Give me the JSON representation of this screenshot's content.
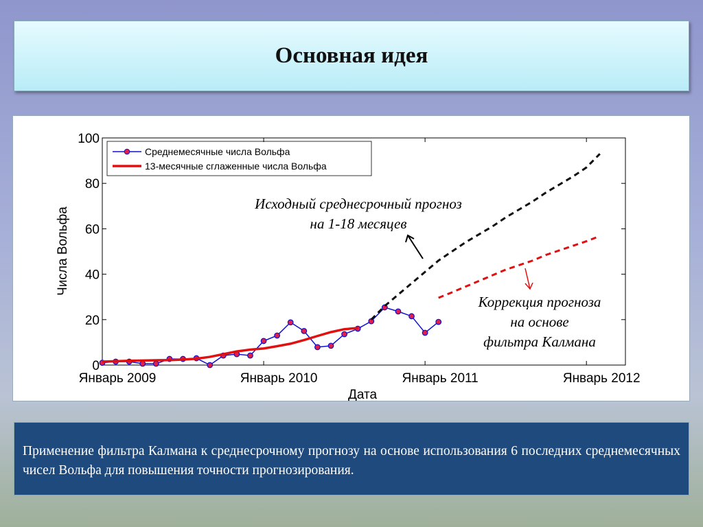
{
  "header": {
    "title": "Основная идея"
  },
  "chart_data": {
    "type": "line",
    "xlabel": "Дата",
    "ylabel": "Числа Вольфа",
    "xlim": [
      0,
      38.9
    ],
    "ylim": [
      0,
      100
    ],
    "xticks": [
      {
        "value": 0,
        "label": "Январь 2009"
      },
      {
        "value": 12,
        "label": "Январь 2010"
      },
      {
        "value": 24,
        "label": "Январь 2011"
      },
      {
        "value": 36,
        "label": "Январь 2012"
      }
    ],
    "yticks": [
      0,
      20,
      40,
      60,
      80,
      100
    ],
    "legend": "upper left",
    "series": [
      {
        "name": "Среднемесячные числа Вольфа",
        "color": "#1010d0",
        "marker": "circle",
        "marker_fill": "#e0204a",
        "x": [
          0,
          1,
          2,
          3,
          4,
          5,
          6,
          7,
          8,
          9,
          10,
          11,
          12,
          13,
          14,
          15,
          16,
          17,
          18,
          19,
          20,
          21,
          22,
          23,
          24,
          25
        ],
        "values": [
          1,
          1.5,
          1.5,
          0.6,
          0.6,
          2.7,
          2.7,
          3,
          0,
          4.2,
          4.8,
          4.2,
          10.6,
          13,
          18.8,
          15,
          7.9,
          8.5,
          13.6,
          16,
          19.3,
          25.4,
          23.6,
          21.5,
          14.2,
          19
        ]
      },
      {
        "name": "13-месячные сглаженные числа Вольфа",
        "color": "#e01010",
        "x": [
          0,
          1,
          2,
          3,
          4,
          5,
          6,
          7,
          8,
          9,
          10,
          11,
          12,
          13,
          14,
          15,
          16,
          17,
          18,
          19
        ],
        "values": [
          1.5,
          1.7,
          1.9,
          2,
          2.1,
          2.2,
          2.4,
          2.8,
          3.6,
          4.8,
          6,
          6.8,
          7.3,
          8.3,
          9.4,
          11,
          12.8,
          14.5,
          15.8,
          16.3
        ]
      },
      {
        "color": "#111111",
        "dash": true,
        "x": [
          20,
          21,
          22,
          23,
          24,
          25,
          26,
          27,
          28,
          29,
          30,
          31,
          32,
          33,
          34,
          35,
          36,
          37
        ],
        "values": [
          20,
          26,
          31,
          36,
          41,
          46,
          50,
          54,
          57.5,
          61,
          65,
          68.5,
          72,
          76,
          79.5,
          83,
          87,
          93
        ]
      },
      {
        "color": "#e01010",
        "dash": true,
        "x": [
          25,
          26,
          27,
          28,
          29,
          30,
          31,
          32,
          33,
          34,
          35,
          36,
          37
        ],
        "values": [
          29.6,
          32,
          34.5,
          37,
          39.5,
          42,
          44,
          46,
          48.5,
          50.5,
          52.5,
          54.5,
          56.8
        ]
      }
    ],
    "annotations": [
      {
        "lines": [
          "Исходный среднесрочный прогноз",
          "на 1-18 месяцев"
        ]
      },
      {
        "lines": [
          "Коррекция прогноза",
          "на основе",
          "фильтра Калмана"
        ]
      }
    ]
  },
  "footer": {
    "text": "Применение фильтра Калмана к среднесрочному прогнозу на основе использования 6 последних среднемесячных чисел Вольфа для повышения точности прогнозирования."
  }
}
